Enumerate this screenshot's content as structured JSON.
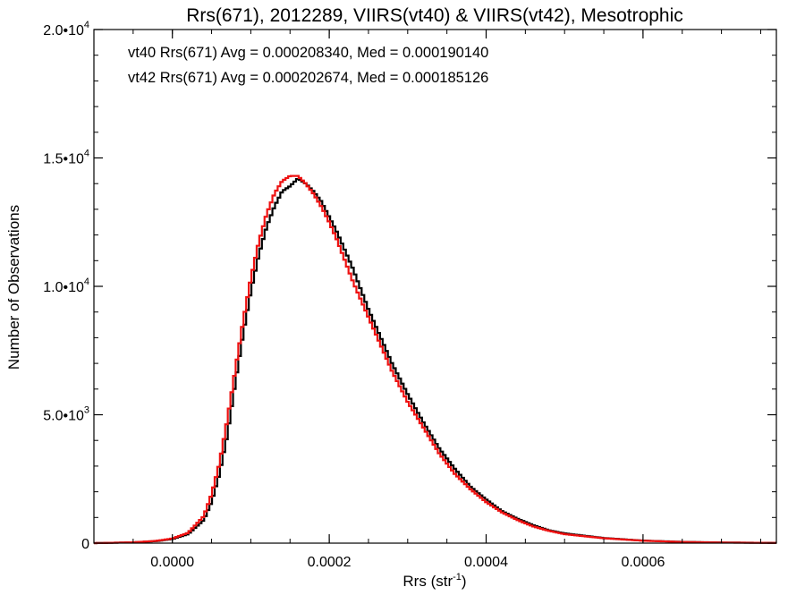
{
  "chart_data": {
    "type": "line",
    "title": "Rrs(671), 2012289, VIIRS(vt40) & VIIRS(vt42), Mesotrophic",
    "xlabel": {
      "base": "Rrs (str",
      "sup": "-1",
      "close": ")"
    },
    "ylabel": "Number of Observations",
    "xlim": [
      -0.0001,
      0.00077
    ],
    "ylim": [
      0,
      20000
    ],
    "xticks": [
      {
        "value": 0.0,
        "label": "0.0000"
      },
      {
        "value": 0.0002,
        "label": "0.0002"
      },
      {
        "value": 0.0004,
        "label": "0.0004"
      },
      {
        "value": 0.0006,
        "label": "0.0006"
      }
    ],
    "yticks": [
      {
        "value": 0,
        "base": "0",
        "sup": ""
      },
      {
        "value": 5000,
        "base": "5.0•10",
        "sup": "3"
      },
      {
        "value": 10000,
        "base": "1.0•10",
        "sup": "4"
      },
      {
        "value": 15000,
        "base": "1.5•10",
        "sup": "4"
      },
      {
        "value": 20000,
        "base": "2.0•10",
        "sup": "4"
      }
    ],
    "grid": false,
    "legend": "top-left",
    "series": [
      {
        "name": "vt40",
        "color": "#000000",
        "annotation": "vt40 Rrs(671) Avg = 0.000208340, Med = 0.000190140",
        "x": [
          -0.0001,
          -5e-05,
          -2e-05,
          0.0,
          2e-05,
          4e-05,
          5e-05,
          6e-05,
          7e-05,
          8e-05,
          9e-05,
          0.0001,
          0.00011,
          0.00012,
          0.00013,
          0.00014,
          0.00015,
          0.00016,
          0.00017,
          0.00018,
          0.00019,
          0.0002,
          0.00021,
          0.00022,
          0.00023,
          0.00024,
          0.00025,
          0.00026,
          0.00027,
          0.00028,
          0.00029,
          0.0003,
          0.00032,
          0.00034,
          0.00036,
          0.00038,
          0.0004,
          0.00042,
          0.00044,
          0.00046,
          0.00048,
          0.0005,
          0.00055,
          0.0006,
          0.00065,
          0.0007,
          0.00077
        ],
        "y": [
          0,
          30,
          80,
          160,
          350,
          900,
          1600,
          2700,
          4200,
          6200,
          8100,
          9800,
          11200,
          12300,
          13100,
          13700,
          13900,
          14200,
          14000,
          13700,
          13300,
          12700,
          12100,
          11400,
          10700,
          9900,
          9100,
          8400,
          7700,
          7000,
          6400,
          5800,
          4700,
          3700,
          2900,
          2200,
          1700,
          1250,
          950,
          700,
          500,
          380,
          200,
          100,
          50,
          25,
          10
        ]
      },
      {
        "name": "vt42",
        "color": "#ee1111",
        "annotation": "vt42 Rrs(671) Avg = 0.000202674, Med = 0.000185126",
        "x": [
          -0.0001,
          -5e-05,
          -2e-05,
          0.0,
          2e-05,
          4e-05,
          5e-05,
          6e-05,
          7e-05,
          8e-05,
          9e-05,
          0.0001,
          0.00011,
          0.00012,
          0.00013,
          0.00014,
          0.00015,
          0.00016,
          0.00017,
          0.00018,
          0.00019,
          0.0002,
          0.00021,
          0.00022,
          0.00023,
          0.00024,
          0.00025,
          0.00026,
          0.00027,
          0.00028,
          0.00029,
          0.0003,
          0.00032,
          0.00034,
          0.00036,
          0.00038,
          0.0004,
          0.00042,
          0.00044,
          0.00046,
          0.00048,
          0.0005,
          0.00055,
          0.0006,
          0.00065,
          0.0007,
          0.00077
        ],
        "y": [
          0,
          30,
          90,
          180,
          400,
          1050,
          1900,
          3100,
          4800,
          6700,
          8600,
          10300,
          11700,
          12800,
          13600,
          14100,
          14300,
          14300,
          14000,
          13600,
          13100,
          12500,
          11800,
          11000,
          10200,
          9500,
          8800,
          8100,
          7400,
          6700,
          6100,
          5500,
          4500,
          3500,
          2700,
          2100,
          1600,
          1200,
          900,
          650,
          480,
          350,
          190,
          95,
          45,
          22,
          8
        ]
      }
    ]
  }
}
